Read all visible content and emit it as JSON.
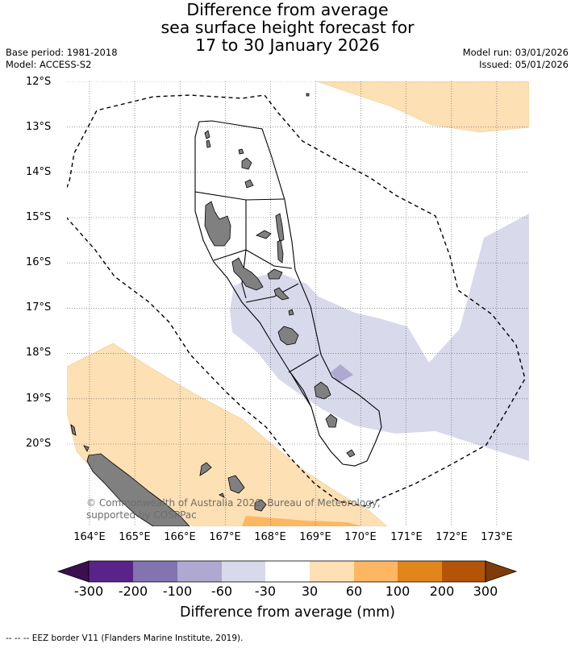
{
  "title": [
    "Difference from average",
    "sea surface height forecast for",
    "17 to 30 January 2026"
  ],
  "base_period": "Base period: 1981-2018",
  "model": "Model: ACCESS-S2",
  "model_run": "Model run: 03/01/2026",
  "issued": "Issued: 05/01/2026",
  "map_region": {
    "lon_range": [
      163.4,
      173.7
    ],
    "lat_range": [
      -21.8,
      -11.9
    ]
  },
  "lat_labels": [
    "12°S",
    "13°S",
    "14°S",
    "15°S",
    "16°S",
    "17°S",
    "18°S",
    "19°S",
    "20°S"
  ],
  "lon_labels": [
    "164°E",
    "165°E",
    "166°E",
    "167°E",
    "168°E",
    "169°E",
    "170°E",
    "171°E",
    "172°E",
    "173°E"
  ],
  "copyright": "© Commonwealth of Australia 2026, Bureau of Meteorology, supported by COSPPac",
  "colorbar": {
    "ticks": [
      "-300",
      "-200",
      "-100",
      "-60",
      "-30",
      "30",
      "60",
      "100",
      "200",
      "300"
    ],
    "colors": [
      "#3b0f50",
      "#5a2389",
      "#8373b0",
      "#afa8d0",
      "#d9d9ec",
      "#ffffff",
      "#fde0b4",
      "#fdb763",
      "#e2861b",
      "#b35407",
      "#7f3b08"
    ],
    "title": "Difference from average (mm)"
  },
  "footnote": "--  --  -- EEZ border V11 (Flanders Marine Institute, 2019).",
  "land_color": "#808080"
}
